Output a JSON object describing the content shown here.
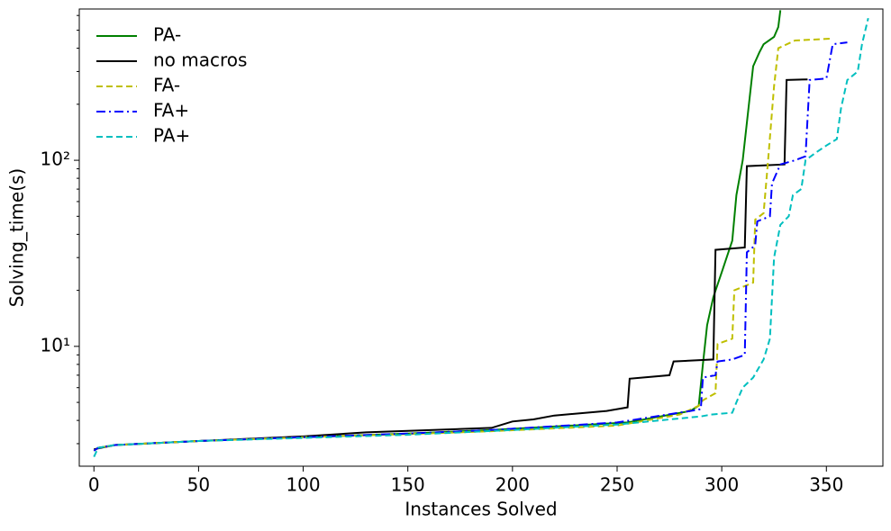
{
  "chart_data": {
    "type": "line",
    "x_label": "Instances Solved",
    "y_label": "Solving_time(s)",
    "y_scale": "log",
    "legend_position": "upper left",
    "xlim": [
      -7,
      377
    ],
    "xticks": [
      0,
      50,
      100,
      150,
      200,
      250,
      300,
      350
    ],
    "ylim": [
      2.27,
      650
    ],
    "yticks": [
      {
        "value": 10,
        "label": "10¹"
      },
      {
        "value": 100,
        "label": "10²"
      }
    ],
    "yminorticks": [
      3,
      4,
      5,
      6,
      7,
      8,
      9,
      20,
      30,
      40,
      50,
      60,
      70,
      80,
      90,
      200,
      300,
      400,
      500,
      600
    ],
    "series": [
      {
        "name": "PA-",
        "color": "#008000",
        "dash": "solid",
        "x": [
          0,
          2,
          10,
          50,
          100,
          150,
          190,
          255,
          285,
          289,
          291,
          293,
          296,
          300,
          305,
          307,
          310,
          313,
          315,
          318,
          320,
          325,
          327,
          328
        ],
        "values": [
          2.75,
          2.85,
          2.95,
          3.1,
          3.25,
          3.4,
          3.55,
          3.9,
          4.5,
          4.8,
          8,
          13,
          18.4,
          25,
          37,
          65,
          100,
          200,
          320,
          380,
          420,
          460,
          520,
          640
        ]
      },
      {
        "name": "no macros",
        "color": "#000000",
        "dash": "solid",
        "x": [
          0,
          10,
          50,
          100,
          130,
          190,
          200,
          210,
          220,
          245,
          255,
          256,
          275,
          277,
          296,
          297,
          311,
          312,
          330,
          331,
          341
        ],
        "values": [
          2.8,
          2.95,
          3.1,
          3.28,
          3.45,
          3.65,
          3.95,
          4.05,
          4.25,
          4.5,
          4.7,
          6.7,
          7.0,
          8.3,
          8.5,
          33,
          34,
          93,
          95,
          270,
          272
        ]
      },
      {
        "name": "FA-",
        "color": "#bfbf00",
        "dash": "7 4",
        "x": [
          0,
          2,
          10,
          50,
          100,
          150,
          190,
          250,
          280,
          289,
          291,
          297,
          298,
          305,
          306,
          315,
          316,
          320,
          322,
          325,
          327,
          335,
          352
        ],
        "values": [
          2.75,
          2.85,
          2.95,
          3.1,
          3.25,
          3.38,
          3.5,
          3.75,
          4.3,
          4.8,
          5.13,
          5.6,
          10.3,
          11,
          20,
          22,
          48,
          52,
          95,
          250,
          400,
          440,
          450
        ]
      },
      {
        "name": "FA+",
        "color": "#0000ff",
        "dash": "10 4 2 4",
        "x": [
          0,
          2,
          10,
          50,
          100,
          150,
          190,
          250,
          285,
          290,
          291,
          297,
          298,
          305,
          311,
          312,
          316,
          317,
          323,
          324,
          328,
          335,
          340,
          342,
          350,
          353,
          360
        ],
        "values": [
          2.75,
          2.85,
          2.95,
          3.1,
          3.25,
          3.4,
          3.55,
          3.9,
          4.5,
          4.6,
          6.8,
          7,
          8.3,
          8.5,
          9,
          32,
          35,
          47,
          50,
          75,
          95,
          100,
          105,
          270,
          275,
          420,
          430
        ]
      },
      {
        "name": "PA+",
        "color": "#00bfbf",
        "dash": "7 4",
        "x": [
          0,
          2,
          10,
          50,
          100,
          150,
          200,
          250,
          290,
          295,
          305,
          307,
          310,
          315,
          320,
          323,
          325,
          328,
          332,
          334,
          338,
          340,
          345,
          350,
          355,
          357,
          360,
          365,
          367,
          370
        ],
        "values": [
          2.55,
          2.85,
          2.95,
          3.1,
          3.22,
          3.35,
          3.55,
          3.8,
          4.2,
          4.3,
          4.4,
          5.0,
          6,
          6.8,
          8.5,
          11,
          30,
          45,
          50,
          65,
          70,
          100,
          110,
          120,
          130,
          190,
          270,
          300,
          420,
          580
        ]
      }
    ]
  }
}
